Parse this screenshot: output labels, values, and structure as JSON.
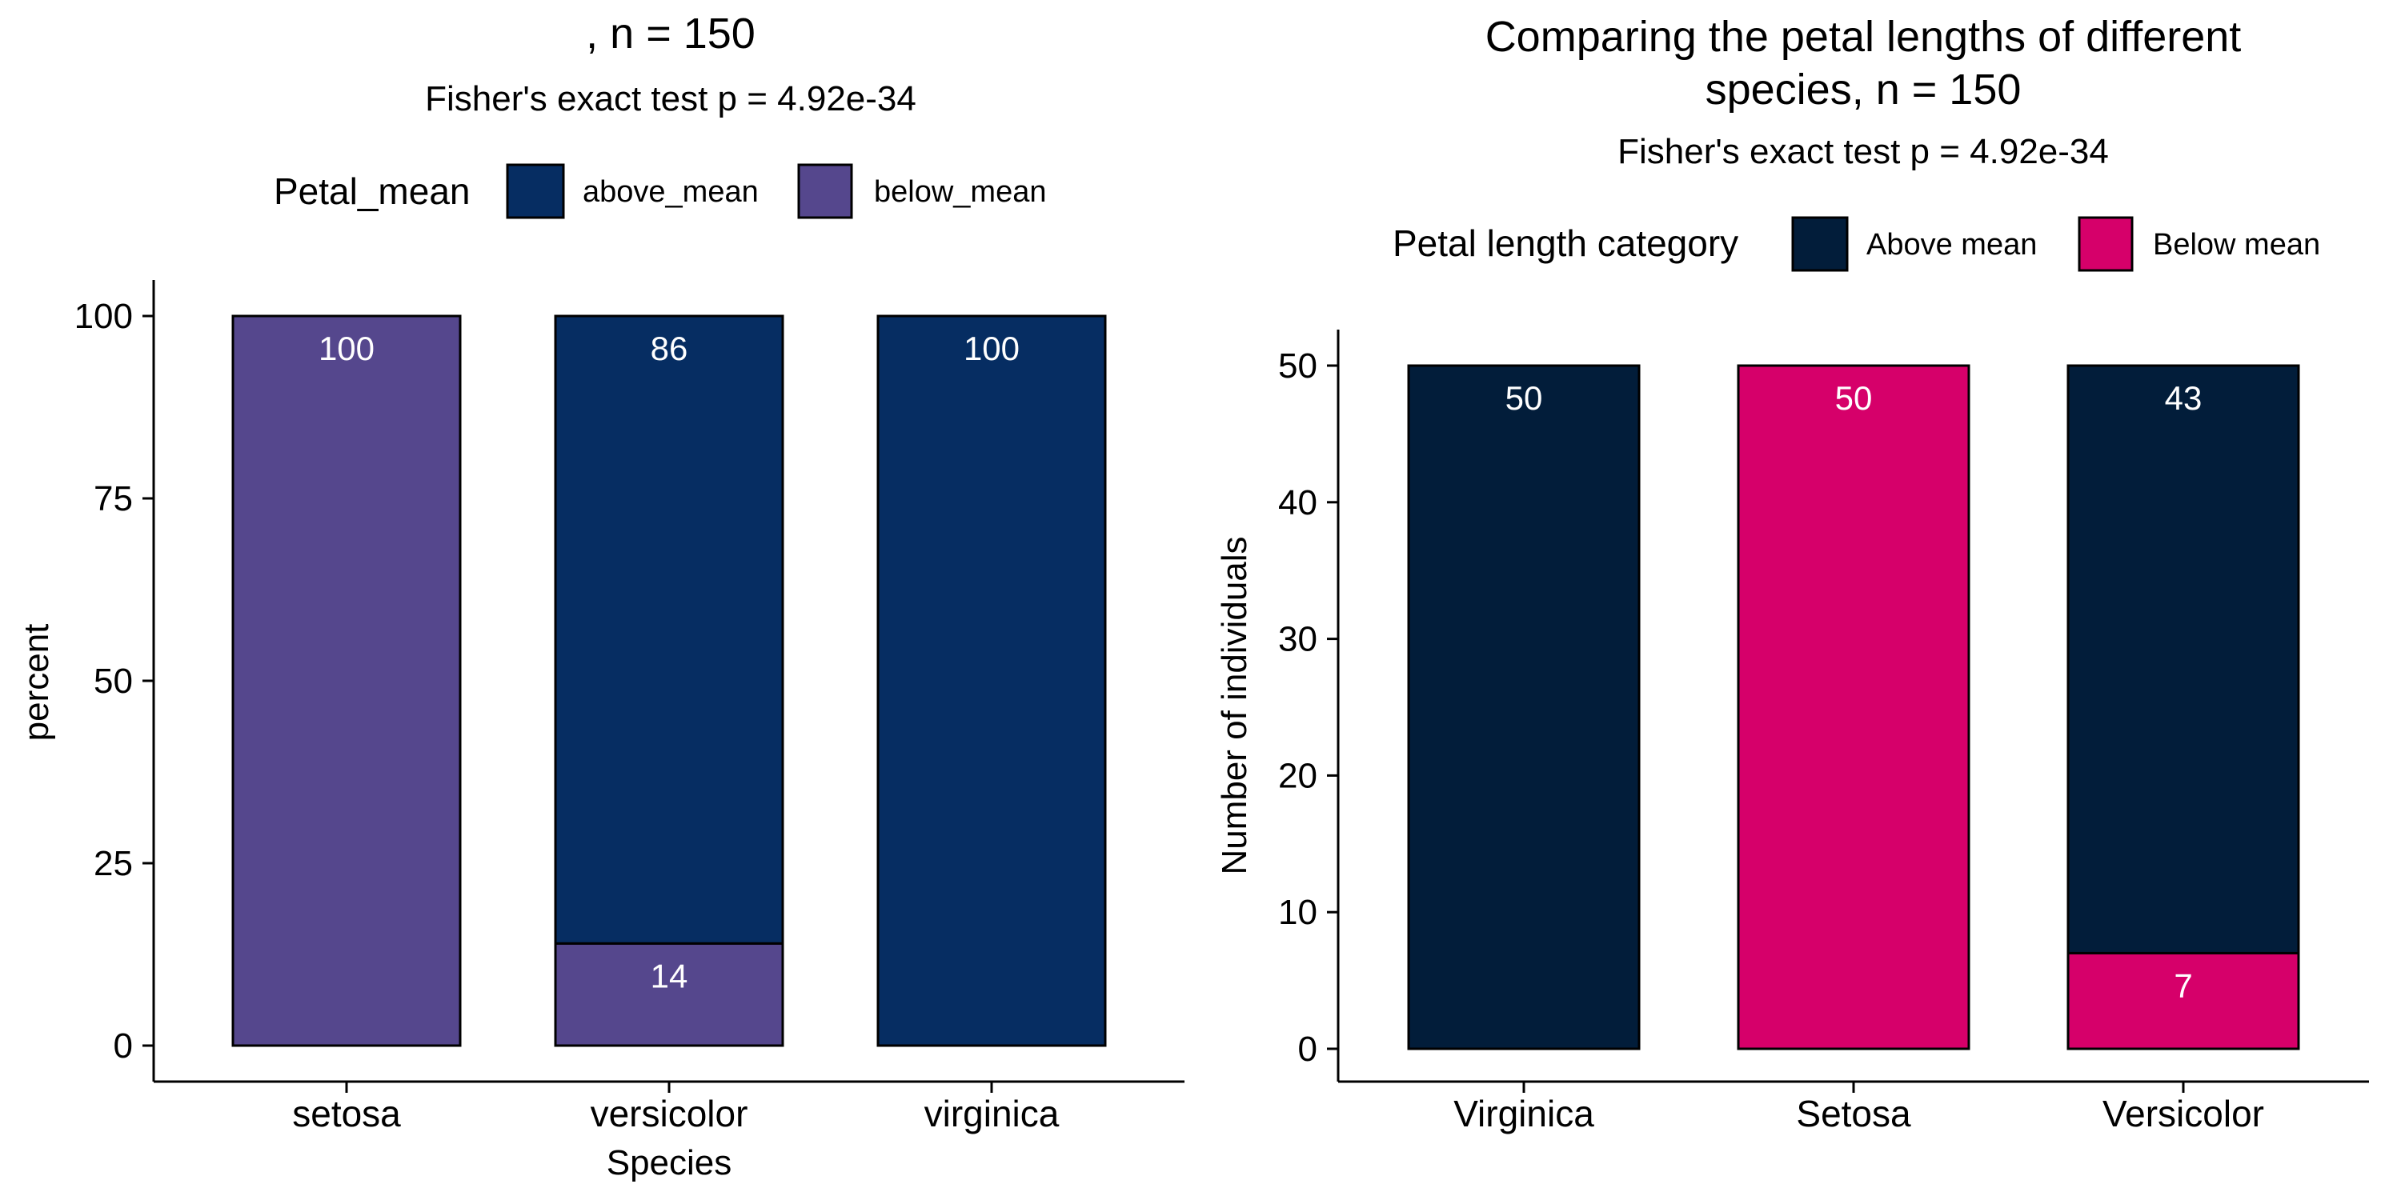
{
  "chart_data": [
    {
      "type": "bar",
      "stacked": true,
      "title": ", n = 150",
      "subtitle": "Fisher's exact test p = 4.92e-34",
      "xlabel": "Species",
      "ylabel": "percent",
      "categories": [
        "setosa",
        "versicolor",
        "virginica"
      ],
      "ylim": [
        0,
        100
      ],
      "yticks": [
        0,
        25,
        50,
        75,
        100
      ],
      "legend": {
        "title": "Petal_mean",
        "position": "top",
        "entries": [
          {
            "label": "above_mean",
            "color": "#062D62"
          },
          {
            "label": "below_mean",
            "color": "#55478D"
          }
        ]
      },
      "series": [
        {
          "name": "below_mean",
          "color": "#55478D",
          "values": [
            100,
            14,
            0
          ],
          "labels": [
            "100",
            "14",
            ""
          ]
        },
        {
          "name": "above_mean",
          "color": "#062D62",
          "values": [
            0,
            86,
            100
          ],
          "labels": [
            "",
            "86",
            "100"
          ]
        }
      ],
      "grid": false
    },
    {
      "type": "bar",
      "stacked": true,
      "title": "Comparing the petal lengths of different species, n = 150",
      "title_lines": [
        "Comparing the petal lengths of different",
        "species, n = 150"
      ],
      "subtitle": "Fisher's exact test p = 4.92e-34",
      "xlabel": "",
      "ylabel": "Number of individuals",
      "categories": [
        "Virginica",
        "Setosa",
        "Versicolor"
      ],
      "ylim": [
        0,
        50
      ],
      "yticks": [
        0,
        10,
        20,
        30,
        40,
        50
      ],
      "legend": {
        "title": "Petal length category",
        "position": "top",
        "entries": [
          {
            "label": "Above mean",
            "color": "#021D3A"
          },
          {
            "label": "Below mean",
            "color": "#D6006A"
          }
        ]
      },
      "series": [
        {
          "name": "Below mean",
          "color": "#D6006A",
          "values": [
            0,
            50,
            7
          ],
          "labels": [
            "",
            "50",
            "7"
          ]
        },
        {
          "name": "Above mean",
          "color": "#021D3A",
          "values": [
            50,
            0,
            43
          ],
          "labels": [
            "50",
            "",
            "43"
          ]
        }
      ],
      "grid": false
    }
  ]
}
